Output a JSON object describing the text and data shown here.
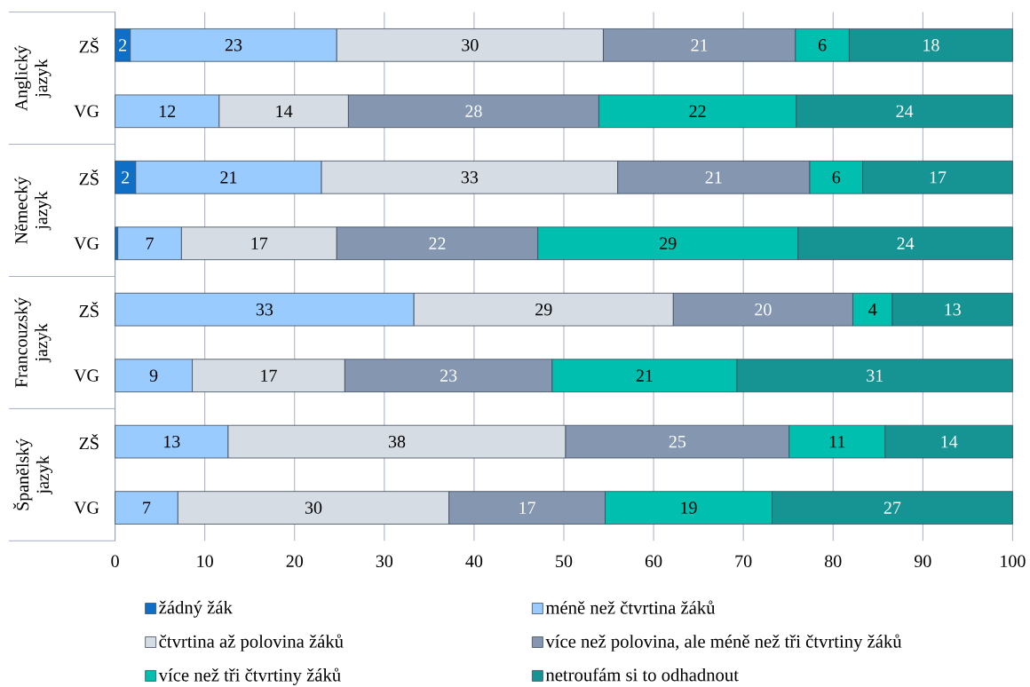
{
  "chart_data": {
    "type": "bar",
    "orientation": "horizontal",
    "stacked": true,
    "categories": [
      "ZŠ",
      "VG",
      "ZŠ",
      "VG",
      "ZŠ",
      "VG",
      "ZŠ",
      "VG"
    ],
    "annotations": [
      "Anglický jazyk",
      "Německý jazyk",
      "Francouzský jazyk",
      "Španělský jazyk"
    ],
    "series": [
      {
        "name": "žádný žák",
        "color": "#0f6fc6",
        "values": [
          1.7,
          null,
          2.3,
          0.3,
          null,
          null,
          null,
          null
        ],
        "value_labels": [
          "2",
          null,
          "2",
          null,
          null,
          null,
          null,
          null
        ]
      },
      {
        "name": "méně než čtvrtina žáků",
        "color": "#99cbff",
        "values": [
          23.0,
          11.6,
          20.7,
          7.1,
          33.3,
          8.6,
          12.6,
          7.0
        ],
        "value_labels": [
          "23",
          "12",
          "21",
          "7",
          "33",
          "9",
          "13",
          "7"
        ]
      },
      {
        "name": "čtvrtina až polovina žáků",
        "color": "#d6dce4",
        "values": [
          29.7,
          14.4,
          33.0,
          17.3,
          28.9,
          17.0,
          37.6,
          30.2
        ],
        "value_labels": [
          "30",
          "14",
          "33",
          "17",
          "29",
          "17",
          "38",
          "30"
        ]
      },
      {
        "name": "více než polovina, ale méně než tři čtvrtiny žáků",
        "color": "#8496b0",
        "values": [
          21.4,
          27.9,
          21.4,
          22.4,
          20.0,
          23.1,
          24.9,
          17.4
        ],
        "value_labels": [
          "21",
          "28",
          "21",
          "22",
          "20",
          "23",
          "25",
          "17"
        ]
      },
      {
        "name": "více než tři čtvrtiny žáků",
        "color": "#00bfae",
        "values": [
          6.0,
          22.0,
          5.9,
          29.0,
          4.4,
          20.6,
          10.7,
          18.6
        ],
        "value_labels": [
          "6",
          "22",
          "6",
          "29",
          "4",
          "21",
          "11",
          "19"
        ]
      },
      {
        "name": "netroufám si to odhadnout",
        "color": "#169494",
        "values": [
          18.2,
          24.1,
          16.7,
          23.9,
          13.4,
          30.7,
          14.2,
          26.8
        ],
        "value_labels": [
          "18",
          "24",
          "17",
          "24",
          "13",
          "31",
          "14",
          "27"
        ]
      }
    ],
    "xlim": [
      0,
      100
    ],
    "xticks": [
      0,
      10,
      20,
      30,
      40,
      50,
      60,
      70,
      80,
      90,
      100
    ],
    "grid": "x",
    "legend": "bottom"
  }
}
